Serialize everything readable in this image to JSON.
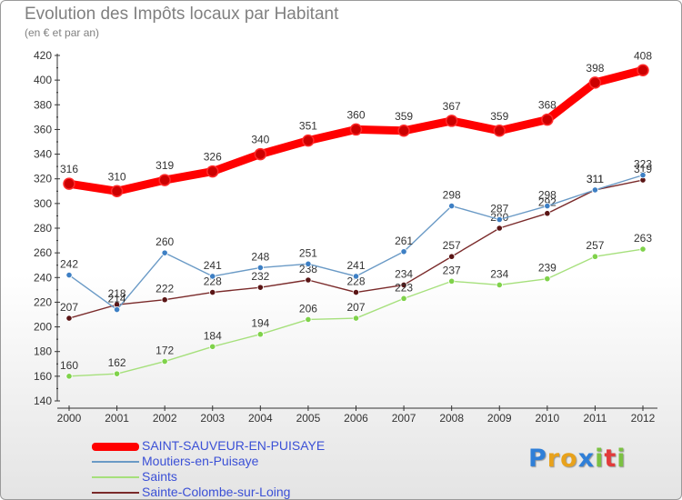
{
  "chart_data": {
    "type": "line",
    "title": "Evolution des Impôts locaux par Habitant",
    "subtitle": "(en € et par an)",
    "x": [
      "2000",
      "2001",
      "2002",
      "2003",
      "2004",
      "2005",
      "2006",
      "2007",
      "2008",
      "2009",
      "2010",
      "2011",
      "2012"
    ],
    "ylim": [
      140,
      420
    ],
    "yticks": [
      140,
      160,
      180,
      200,
      220,
      240,
      260,
      280,
      300,
      320,
      340,
      360,
      380,
      400,
      420
    ],
    "grid": false,
    "legend_position": "bottom-left",
    "series": [
      {
        "name": "SAINT-SAUVEUR-EN-PUISAYE",
        "color": "#ff0000",
        "marker_color": "#cc0000",
        "values": [
          316,
          310,
          319,
          326,
          340,
          351,
          360,
          359,
          367,
          359,
          368,
          398,
          408
        ]
      },
      {
        "name": "Moutiers-en-Puisaye",
        "color": "#6a9ac6",
        "marker_color": "#3d7fc4",
        "values": [
          242,
          214,
          260,
          241,
          248,
          251,
          241,
          261,
          298,
          287,
          298,
          311,
          323
        ]
      },
      {
        "name": "Saints",
        "color": "#a6e07c",
        "marker_color": "#7fd24a",
        "values": [
          160,
          162,
          172,
          184,
          194,
          206,
          207,
          223,
          237,
          234,
          239,
          257,
          263
        ]
      },
      {
        "name": "Sainte-Colombe-sur-Loing",
        "color": "#7a2a2a",
        "marker_color": "#5a1515",
        "values": [
          207,
          218,
          222,
          228,
          232,
          238,
          228,
          234,
          257,
          280,
          292,
          311,
          319
        ]
      }
    ]
  },
  "logo": {
    "letters": [
      "P",
      "r",
      "o",
      "x",
      "i",
      "t",
      "i"
    ],
    "colors": [
      "#2f7fd8",
      "#e8a21c",
      "#e8a21c",
      "#2f7fd8",
      "#7bc142",
      "#e23b3b",
      "#7bc142"
    ]
  }
}
